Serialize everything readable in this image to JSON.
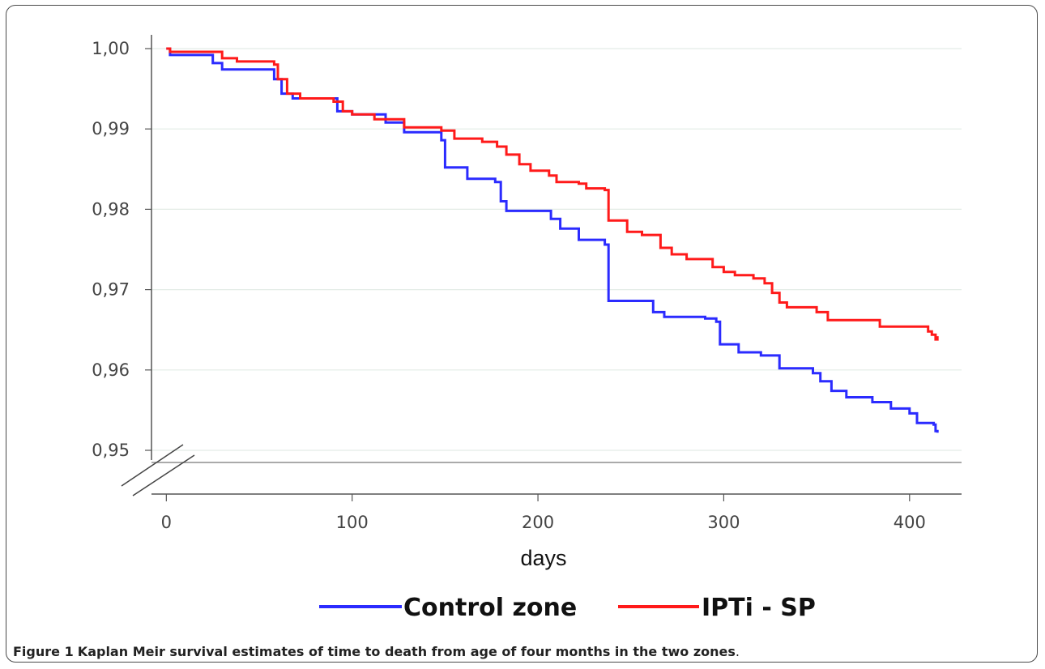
{
  "chart_data": {
    "type": "line",
    "xlabel": "days",
    "ylabel": "",
    "title": "",
    "xlim": [
      -8,
      428
    ],
    "ylim": [
      0.95,
      1.0
    ],
    "x_ticks": [
      "0",
      "100",
      "200",
      "300",
      "400"
    ],
    "x_tick_values": [
      0,
      100,
      200,
      300,
      400
    ],
    "y_ticks": [
      "1,00",
      "0,99",
      "0,98",
      "0,97",
      "0,96",
      "0,95"
    ],
    "y_tick_values": [
      1.0,
      0.99,
      0.98,
      0.97,
      0.96,
      0.95
    ],
    "grid": "horizontal",
    "legend_position": "bottom",
    "series": [
      {
        "name": "Control zone",
        "color": "#2b2bff",
        "points": [
          [
            0,
            1.0
          ],
          [
            2,
            0.9992
          ],
          [
            25,
            0.9982
          ],
          [
            30,
            0.9974
          ],
          [
            58,
            0.9962
          ],
          [
            62,
            0.9944
          ],
          [
            68,
            0.9938
          ],
          [
            92,
            0.9922
          ],
          [
            100,
            0.9918
          ],
          [
            118,
            0.9908
          ],
          [
            128,
            0.9896
          ],
          [
            148,
            0.9886
          ],
          [
            150,
            0.9852
          ],
          [
            162,
            0.9838
          ],
          [
            177,
            0.9834
          ],
          [
            180,
            0.981
          ],
          [
            183,
            0.9798
          ],
          [
            207,
            0.9788
          ],
          [
            212,
            0.9776
          ],
          [
            222,
            0.9762
          ],
          [
            236,
            0.9756
          ],
          [
            238,
            0.9686
          ],
          [
            262,
            0.9672
          ],
          [
            268,
            0.9666
          ],
          [
            290,
            0.9664
          ],
          [
            296,
            0.966
          ],
          [
            298,
            0.9632
          ],
          [
            308,
            0.9622
          ],
          [
            320,
            0.9618
          ],
          [
            330,
            0.9602
          ],
          [
            348,
            0.9596
          ],
          [
            352,
            0.9586
          ],
          [
            358,
            0.9574
          ],
          [
            366,
            0.9566
          ],
          [
            380,
            0.956
          ],
          [
            390,
            0.9552
          ],
          [
            400,
            0.9546
          ],
          [
            404,
            0.9534
          ],
          [
            413,
            0.9532
          ],
          [
            414,
            0.9524
          ],
          [
            415,
            0.9522
          ]
        ]
      },
      {
        "name": "IPTi - SP",
        "color": "#ff1a1a",
        "points": [
          [
            0,
            1.0
          ],
          [
            2,
            0.9996
          ],
          [
            25,
            0.9996
          ],
          [
            30,
            0.9988
          ],
          [
            38,
            0.9984
          ],
          [
            58,
            0.998
          ],
          [
            60,
            0.9962
          ],
          [
            65,
            0.9944
          ],
          [
            72,
            0.9938
          ],
          [
            90,
            0.9934
          ],
          [
            95,
            0.9922
          ],
          [
            100,
            0.9918
          ],
          [
            112,
            0.9912
          ],
          [
            128,
            0.9902
          ],
          [
            148,
            0.9898
          ],
          [
            155,
            0.9888
          ],
          [
            170,
            0.9884
          ],
          [
            178,
            0.9878
          ],
          [
            183,
            0.9868
          ],
          [
            190,
            0.9856
          ],
          [
            196,
            0.9848
          ],
          [
            206,
            0.9842
          ],
          [
            210,
            0.9834
          ],
          [
            222,
            0.9832
          ],
          [
            226,
            0.9826
          ],
          [
            236,
            0.9824
          ],
          [
            238,
            0.9786
          ],
          [
            248,
            0.9772
          ],
          [
            256,
            0.9768
          ],
          [
            266,
            0.9752
          ],
          [
            272,
            0.9744
          ],
          [
            280,
            0.9738
          ],
          [
            294,
            0.9728
          ],
          [
            300,
            0.9722
          ],
          [
            306,
            0.9718
          ],
          [
            316,
            0.9714
          ],
          [
            322,
            0.9708
          ],
          [
            326,
            0.9696
          ],
          [
            330,
            0.9684
          ],
          [
            334,
            0.9678
          ],
          [
            350,
            0.9672
          ],
          [
            356,
            0.9662
          ],
          [
            384,
            0.9654
          ],
          [
            410,
            0.9648
          ],
          [
            412,
            0.9644
          ],
          [
            414,
            0.9638
          ],
          [
            415,
            0.9642
          ]
        ]
      }
    ]
  },
  "caption": {
    "figure_label": "Figure 1",
    "text": "Kaplan Meir survival estimates of time to death from age of four months in the two zones",
    "end": "."
  }
}
